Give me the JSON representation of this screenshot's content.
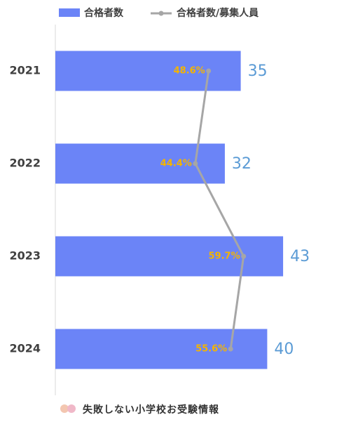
{
  "chart_data": {
    "type": "bar",
    "orientation": "horizontal",
    "categories": [
      "2021",
      "2022",
      "2023",
      "2024"
    ],
    "series": [
      {
        "name": "合格者数",
        "color": "#6b84f7",
        "values": [
          35,
          32,
          43,
          40
        ]
      },
      {
        "name": "合格者数/募集人員",
        "color": "#a6a6a6",
        "type": "line",
        "axis": "x2",
        "values": [
          48.6,
          44.4,
          59.7,
          55.6
        ],
        "value_labels": [
          "48.6%",
          "44.4%",
          "59.7%",
          "55.6%"
        ]
      }
    ],
    "xlim": [
      0,
      50
    ],
    "x2lim": [
      0,
      84
    ],
    "legend": "top"
  },
  "footer": "失敗しない小学校お受験情報"
}
